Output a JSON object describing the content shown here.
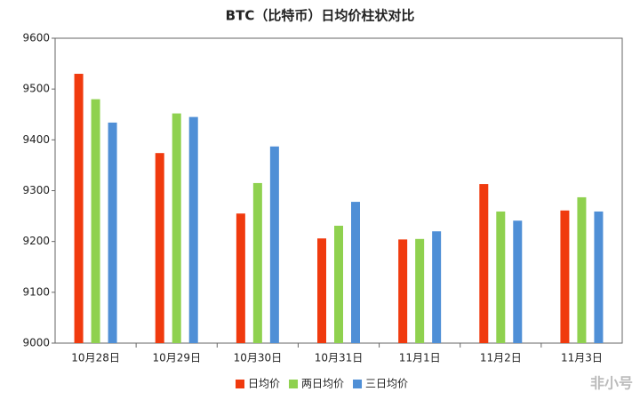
{
  "chart_data": {
    "type": "bar",
    "title": "BTC（比特币）日均价柱状对比",
    "categories": [
      "10月28日",
      "10月29日",
      "10月30日",
      "10月31日",
      "11月1日",
      "11月2日",
      "11月3日"
    ],
    "series": [
      {
        "name": "日均价",
        "color": "#f03a0e",
        "values": [
          9530,
          9374,
          9255,
          9206,
          9204,
          9313,
          9261
        ]
      },
      {
        "name": "两日均价",
        "color": "#8fd14f",
        "values": [
          9480,
          9452,
          9315,
          9231,
          9205,
          9259,
          9287
        ]
      },
      {
        "name": "三日均价",
        "color": "#4f8fd6",
        "values": [
          9434,
          9445,
          9387,
          9278,
          9220,
          9241,
          9259
        ]
      }
    ],
    "ylim": [
      9000,
      9600
    ],
    "yticks": [
      9000,
      9100,
      9200,
      9300,
      9400,
      9500,
      9600
    ],
    "grid": false,
    "legend": "bottom",
    "watermark": "非小号"
  }
}
